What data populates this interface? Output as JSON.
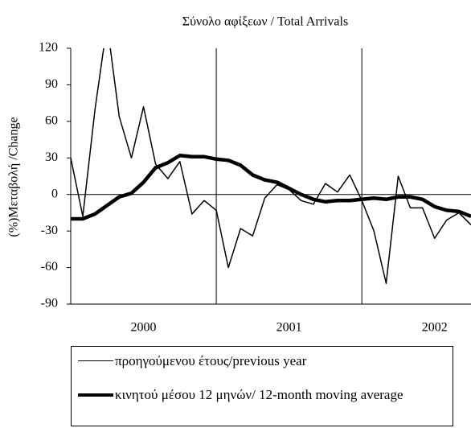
{
  "chart_data": {
    "type": "line",
    "title": "Σύνολο αφίξεων / Total Arrivals",
    "y_label": "(%)Μεταβολή /Change",
    "x": [
      2000,
      2000.083,
      2000.167,
      2000.25,
      2000.333,
      2000.417,
      2000.5,
      2000.583,
      2000.667,
      2000.75,
      2000.833,
      2000.917,
      2001,
      2001.083,
      2001.167,
      2001.25,
      2001.333,
      2001.417,
      2001.5,
      2001.583,
      2001.667,
      2001.75,
      2001.833,
      2001.917,
      2002,
      2002.083,
      2002.167,
      2002.25,
      2002.333,
      2002.417,
      2002.5,
      2002.583,
      2002.667,
      2002.75
    ],
    "series": [
      {
        "name": "προηγούμενου έτους/previous year",
        "color": "#000000",
        "width": 1.5,
        "values": [
          30,
          -18,
          70,
          140,
          64,
          30,
          72,
          25,
          13,
          27,
          -16,
          -5,
          -13,
          -60,
          -28,
          -34,
          -3,
          8,
          4,
          -5,
          -8,
          9,
          2,
          16,
          -5,
          -30,
          -73,
          15,
          -11,
          -11,
          -36,
          -21,
          -15,
          -25
        ]
      },
      {
        "name": "κινητού μέσου 12 μηνών/ 12-month moving average",
        "color": "#000000",
        "width": 4.5,
        "values": [
          -20,
          -20,
          -16,
          -9,
          -2,
          1,
          10,
          22,
          26,
          32,
          31,
          31,
          29,
          28,
          24,
          16,
          12,
          10,
          5,
          0,
          -4,
          -6,
          -5,
          -5,
          -4,
          -3,
          -4,
          -2,
          -2,
          -4,
          -10,
          -13,
          -14,
          -18
        ]
      }
    ],
    "xlim": [
      2000,
      2002.75
    ],
    "xticks": [
      {
        "value": 2000.5,
        "label": "2000"
      },
      {
        "value": 2001.5,
        "label": "2001"
      },
      {
        "value": 2002.5,
        "label": "2002"
      }
    ],
    "x_gridlines": [
      2001,
      2002
    ],
    "ylim": [
      -90,
      120
    ],
    "yticks": [
      -90,
      -60,
      -30,
      0,
      30,
      60,
      90,
      120
    ]
  }
}
